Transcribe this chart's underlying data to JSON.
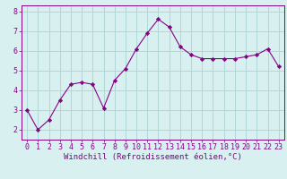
{
  "x": [
    0,
    1,
    2,
    3,
    4,
    5,
    6,
    7,
    8,
    9,
    10,
    11,
    12,
    13,
    14,
    15,
    16,
    17,
    18,
    19,
    20,
    21,
    22,
    23
  ],
  "y": [
    3.0,
    2.0,
    2.5,
    3.5,
    4.3,
    4.4,
    4.3,
    3.1,
    4.5,
    5.1,
    6.1,
    6.9,
    7.6,
    7.2,
    6.2,
    5.8,
    5.6,
    5.6,
    5.6,
    5.6,
    5.7,
    5.8,
    6.1,
    5.2
  ],
  "line_color": "#880088",
  "marker": "D",
  "marker_size": 2.2,
  "bg_color": "#d8f0f0",
  "grid_color": "#b0d8d8",
  "xlabel": "Windchill (Refroidissement éolien,°C)",
  "ylim": [
    1.5,
    8.3
  ],
  "xlim": [
    -0.5,
    23.5
  ],
  "yticks": [
    2,
    3,
    4,
    5,
    6,
    7,
    8
  ],
  "xticks": [
    0,
    1,
    2,
    3,
    4,
    5,
    6,
    7,
    8,
    9,
    10,
    11,
    12,
    13,
    14,
    15,
    16,
    17,
    18,
    19,
    20,
    21,
    22,
    23
  ],
  "xtick_labels": [
    "0",
    "1",
    "2",
    "3",
    "4",
    "5",
    "6",
    "7",
    "8",
    "9",
    "10",
    "11",
    "12",
    "13",
    "14",
    "15",
    "16",
    "17",
    "18",
    "19",
    "20",
    "21",
    "22",
    "23"
  ],
  "tick_color": "#880088",
  "label_color": "#880088",
  "xlabel_fontsize": 6.5,
  "tick_fontsize": 6.0,
  "linewidth": 0.8
}
